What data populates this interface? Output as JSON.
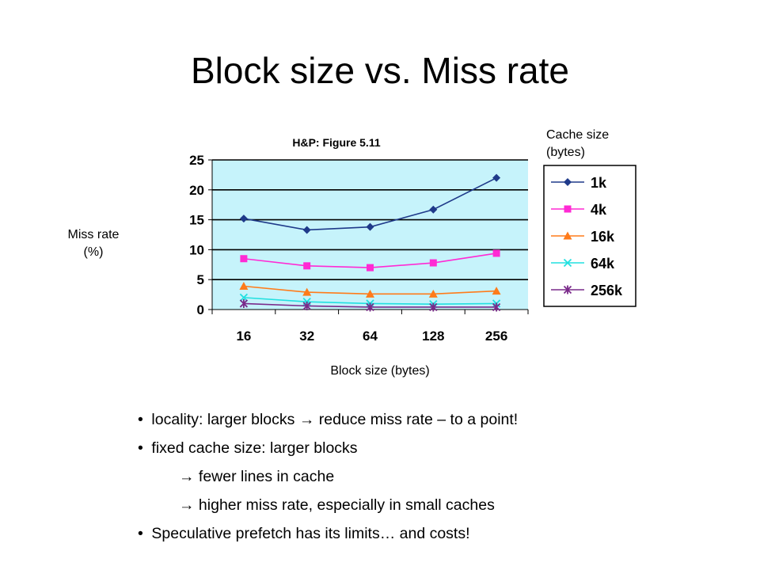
{
  "slide": {
    "title": "Block size vs. Miss rate",
    "y_axis_label": [
      "Miss rate",
      "(%)"
    ],
    "legend_title": [
      "Cache size",
      "(bytes)"
    ],
    "x_axis_label": "Block size (bytes)",
    "bullets": [
      {
        "marker": "•",
        "text": "locality: larger blocks → reduce miss rate – to a point!",
        "level": 0
      },
      {
        "marker": "•",
        "text": "fixed cache size: larger blocks",
        "level": 0
      },
      {
        "marker": "",
        "text": "→ fewer lines in cache",
        "level": 1
      },
      {
        "marker": "",
        "text": "→ higher miss rate, especially in small caches",
        "level": 1
      },
      {
        "marker": "•",
        "text": "Speculative prefetch has its limits… and costs!",
        "level": 0
      }
    ]
  },
  "chart_data": {
    "type": "line",
    "title": "H&P: Figure 5.11",
    "categories": [
      "16",
      "32",
      "64",
      "128",
      "256"
    ],
    "ylim": [
      0,
      25
    ],
    "yticks": [
      "25",
      "20",
      "15",
      "10",
      "5",
      "0"
    ],
    "grid": true,
    "legend_position": "right",
    "series": [
      {
        "name": "1k",
        "values": [
          15.2,
          13.3,
          13.8,
          16.7,
          22.0
        ],
        "color": "#1f3a8a",
        "marker": "diamond"
      },
      {
        "name": "4k",
        "values": [
          8.5,
          7.3,
          7.0,
          7.8,
          9.4
        ],
        "color": "#ff2ad4",
        "marker": "square"
      },
      {
        "name": "16k",
        "values": [
          3.9,
          2.9,
          2.6,
          2.6,
          3.1
        ],
        "color": "#ff7b1a",
        "marker": "triangle"
      },
      {
        "name": "64k",
        "values": [
          2.0,
          1.3,
          1.0,
          0.9,
          1.0
        ],
        "color": "#22e0e0",
        "marker": "x"
      },
      {
        "name": "256k",
        "values": [
          1.0,
          0.6,
          0.4,
          0.4,
          0.4
        ],
        "color": "#7a2a8a",
        "marker": "star"
      }
    ],
    "plot_bg": "#c6f3fb"
  }
}
